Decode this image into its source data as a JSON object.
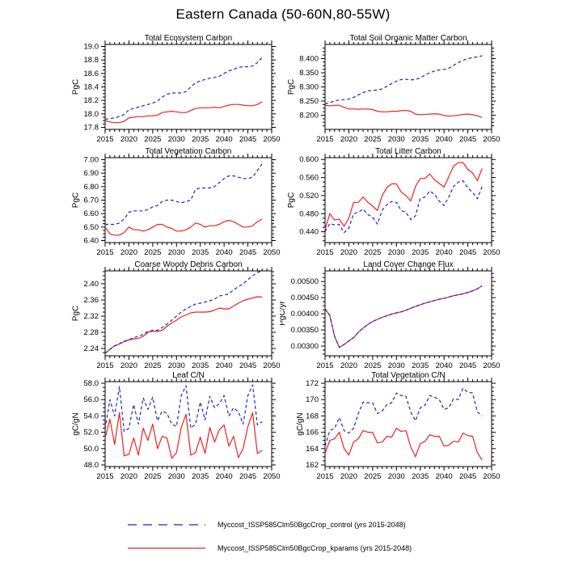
{
  "page_title": "Eastern Canada (50-60N,80-55W)",
  "legend": {
    "items": [
      {
        "label": "Myccost_ISSP585Clm50BgcCrop_control (yrs 2015-2048)",
        "color": "#2222cc",
        "style": "dashed"
      },
      {
        "label": "Myccost_ISSP585Clm50BgcCrop_kparams (yrs 2015-2048)",
        "color": "#ee2222",
        "style": "solid"
      }
    ]
  },
  "chart_data": [
    {
      "type": "line",
      "slug": "total-ecosystem-carbon",
      "title": "Total Ecosystem Carbon",
      "ylabel": "PgC",
      "xlim": [
        2015,
        2050
      ],
      "xticks": [
        2015,
        2020,
        2025,
        2030,
        2035,
        2040,
        2045,
        2050
      ],
      "xtick_labels": [
        "2015",
        "2020",
        "2025",
        "2030",
        "2035",
        "2040",
        "2045",
        "2050"
      ],
      "ylim": [
        17.77,
        19.03
      ],
      "yticks": [
        17.8,
        18.0,
        18.2,
        18.4,
        18.6,
        18.8,
        19.0
      ],
      "ytick_labels": [
        "17.8",
        "18.0",
        "18.2",
        "18.4",
        "18.6",
        "18.8",
        "19.0"
      ],
      "x_start": 2015,
      "series": [
        {
          "name": "control",
          "color": "#2222cc",
          "dashed": true,
          "values": [
            17.92,
            17.93,
            17.94,
            17.96,
            17.99,
            18.06,
            18.08,
            18.1,
            18.12,
            18.14,
            18.16,
            18.19,
            18.25,
            18.29,
            18.31,
            18.31,
            18.31,
            18.33,
            18.4,
            18.46,
            18.49,
            18.51,
            18.53,
            18.54,
            18.56,
            18.6,
            18.64,
            18.66,
            18.69,
            18.7,
            18.7,
            18.71,
            18.76,
            18.84
          ]
        },
        {
          "name": "kparams",
          "color": "#ee2222",
          "dashed": false,
          "values": [
            17.9,
            17.88,
            17.87,
            17.87,
            17.89,
            17.94,
            17.95,
            17.96,
            17.96,
            17.97,
            17.97,
            17.98,
            18.02,
            18.03,
            18.04,
            18.03,
            18.02,
            18.02,
            18.05,
            18.08,
            18.09,
            18.09,
            18.09,
            18.1,
            18.09,
            18.11,
            18.13,
            18.14,
            18.14,
            18.13,
            18.12,
            18.12,
            18.14,
            18.18
          ]
        }
      ]
    },
    {
      "type": "line",
      "slug": "total-soil-organic-matter-carbon",
      "title": "Total Soil Organic Matter Carbon",
      "ylabel": "PgC",
      "xlim": [
        2015,
        2050
      ],
      "xticks": [
        2015,
        2020,
        2025,
        2030,
        2035,
        2040,
        2045,
        2050
      ],
      "xtick_labels": [
        "2015",
        "2020",
        "2025",
        "2030",
        "2035",
        "2040",
        "2045",
        "2050"
      ],
      "ylim": [
        8.15,
        8.45
      ],
      "yticks": [
        8.2,
        8.25,
        8.3,
        8.35,
        8.4
      ],
      "ytick_labels": [
        "8.200",
        "8.250",
        "8.300",
        "8.350",
        "8.400"
      ],
      "x_start": 2015,
      "series": [
        {
          "name": "control",
          "color": "#2222cc",
          "dashed": true,
          "values": [
            8.24,
            8.245,
            8.25,
            8.254,
            8.255,
            8.257,
            8.263,
            8.272,
            8.28,
            8.286,
            8.288,
            8.289,
            8.293,
            8.302,
            8.312,
            8.32,
            8.326,
            8.327,
            8.325,
            8.326,
            8.332,
            8.342,
            8.35,
            8.356,
            8.36,
            8.362,
            8.366,
            8.376,
            8.386,
            8.394,
            8.4,
            8.404,
            8.406,
            8.41
          ]
        },
        {
          "name": "kparams",
          "color": "#ee2222",
          "dashed": false,
          "values": [
            8.235,
            8.233,
            8.235,
            8.235,
            8.228,
            8.222,
            8.222,
            8.221,
            8.222,
            8.222,
            8.22,
            8.214,
            8.212,
            8.212,
            8.214,
            8.214,
            8.216,
            8.217,
            8.214,
            8.204,
            8.202,
            8.203,
            8.204,
            8.205,
            8.204,
            8.199,
            8.197,
            8.198,
            8.2,
            8.203,
            8.204,
            8.202,
            8.198,
            8.192
          ]
        }
      ]
    },
    {
      "type": "line",
      "slug": "total-vegetation-carbon",
      "title": "Total Vegetation Carbon",
      "ylabel": "PgC",
      "xlim": [
        2015,
        2050
      ],
      "xticks": [
        2015,
        2020,
        2025,
        2030,
        2035,
        2040,
        2045,
        2050
      ],
      "xtick_labels": [
        "2015",
        "2020",
        "2025",
        "2030",
        "2035",
        "2040",
        "2045",
        "2050"
      ],
      "ylim": [
        6.385,
        7.015
      ],
      "yticks": [
        6.4,
        6.5,
        6.6,
        6.7,
        6.8,
        6.9,
        7.0
      ],
      "ytick_labels": [
        "6.40",
        "6.50",
        "6.60",
        "6.70",
        "6.80",
        "6.90",
        "7.00"
      ],
      "x_start": 2015,
      "series": [
        {
          "name": "control",
          "color": "#2222cc",
          "dashed": true,
          "values": [
            6.52,
            6.52,
            6.52,
            6.53,
            6.56,
            6.61,
            6.62,
            6.62,
            6.62,
            6.63,
            6.65,
            6.66,
            6.69,
            6.7,
            6.7,
            6.69,
            6.68,
            6.69,
            6.7,
            6.78,
            6.79,
            6.79,
            6.79,
            6.8,
            6.83,
            6.86,
            6.88,
            6.88,
            6.87,
            6.86,
            6.86,
            6.87,
            6.92,
            6.97
          ]
        },
        {
          "name": "kparams",
          "color": "#ee2222",
          "dashed": false,
          "values": [
            6.5,
            6.45,
            6.44,
            6.44,
            6.46,
            6.5,
            6.48,
            6.48,
            6.47,
            6.48,
            6.5,
            6.52,
            6.52,
            6.5,
            6.49,
            6.47,
            6.47,
            6.48,
            6.5,
            6.53,
            6.52,
            6.5,
            6.51,
            6.51,
            6.52,
            6.54,
            6.55,
            6.54,
            6.52,
            6.5,
            6.5,
            6.51,
            6.54,
            6.56
          ]
        }
      ]
    },
    {
      "type": "line",
      "slug": "total-litter-carbon",
      "title": "Total Litter Carbon",
      "ylabel": "PgC",
      "xlim": [
        2015,
        2050
      ],
      "xticks": [
        2015,
        2020,
        2025,
        2030,
        2035,
        2040,
        2045,
        2050
      ],
      "xtick_labels": [
        "2015",
        "2020",
        "2025",
        "2030",
        "2035",
        "2040",
        "2045",
        "2050"
      ],
      "ylim": [
        0.416,
        0.604
      ],
      "yticks": [
        0.44,
        0.48,
        0.52,
        0.56,
        0.6
      ],
      "ytick_labels": [
        "0.440",
        "0.480",
        "0.520",
        "0.560",
        "0.600"
      ],
      "x_start": 2015,
      "series": [
        {
          "name": "control",
          "color": "#2222cc",
          "dashed": true,
          "values": [
            0.44,
            0.458,
            0.455,
            0.456,
            0.438,
            0.448,
            0.48,
            0.483,
            0.49,
            0.478,
            0.472,
            0.457,
            0.488,
            0.5,
            0.507,
            0.505,
            0.487,
            0.483,
            0.467,
            0.475,
            0.513,
            0.517,
            0.53,
            0.523,
            0.508,
            0.498,
            0.517,
            0.54,
            0.55,
            0.553,
            0.537,
            0.527,
            0.513,
            0.54
          ]
        },
        {
          "name": "kparams",
          "color": "#ee2222",
          "dashed": false,
          "values": [
            0.445,
            0.48,
            0.466,
            0.468,
            0.452,
            0.47,
            0.505,
            0.505,
            0.517,
            0.505,
            0.497,
            0.487,
            0.52,
            0.538,
            0.546,
            0.546,
            0.528,
            0.52,
            0.508,
            0.54,
            0.558,
            0.558,
            0.568,
            0.555,
            0.547,
            0.539,
            0.562,
            0.585,
            0.593,
            0.593,
            0.578,
            0.57,
            0.553,
            0.58
          ]
        }
      ]
    },
    {
      "type": "line",
      "slug": "coarse-woody-debris-carbon",
      "title": "Coarse Woody Debris Carbon",
      "ylabel": "PgC",
      "xlim": [
        2015,
        2050
      ],
      "xticks": [
        2015,
        2020,
        2025,
        2030,
        2035,
        2040,
        2045,
        2050
      ],
      "xtick_labels": [
        "2015",
        "2020",
        "2025",
        "2030",
        "2035",
        "2040",
        "2045",
        "2050"
      ],
      "ylim": [
        2.222,
        2.432
      ],
      "yticks": [
        2.24,
        2.28,
        2.32,
        2.36,
        2.4
      ],
      "ytick_labels": [
        "2.24",
        "2.28",
        "2.32",
        "2.36",
        "2.40"
      ],
      "x_start": 2015,
      "series": [
        {
          "name": "control",
          "color": "#2222cc",
          "dashed": true,
          "values": [
            2.228,
            2.238,
            2.247,
            2.252,
            2.258,
            2.262,
            2.267,
            2.27,
            2.275,
            2.282,
            2.285,
            2.285,
            2.292,
            2.3,
            2.31,
            2.32,
            2.33,
            2.338,
            2.344,
            2.35,
            2.352,
            2.355,
            2.358,
            2.362,
            2.37,
            2.372,
            2.375,
            2.385,
            2.393,
            2.4,
            2.41,
            2.42,
            2.428,
            2.432
          ]
        },
        {
          "name": "kparams",
          "color": "#ee2222",
          "dashed": false,
          "values": [
            2.228,
            2.238,
            2.246,
            2.251,
            2.257,
            2.261,
            2.264,
            2.265,
            2.27,
            2.28,
            2.283,
            2.282,
            2.285,
            2.295,
            2.303,
            2.31,
            2.318,
            2.323,
            2.328,
            2.33,
            2.33,
            2.33,
            2.331,
            2.335,
            2.34,
            2.338,
            2.338,
            2.345,
            2.352,
            2.358,
            2.362,
            2.365,
            2.368,
            2.367
          ]
        }
      ]
    },
    {
      "type": "line",
      "slug": "land-cover-change-flux",
      "title": "Land Cover Change Flux",
      "ylabel": "PgC/yr",
      "xlim": [
        2015,
        2050
      ],
      "xticks": [
        2015,
        2020,
        2025,
        2030,
        2035,
        2040,
        2045,
        2050
      ],
      "xtick_labels": [
        "2015",
        "2020",
        "2025",
        "2030",
        "2035",
        "2040",
        "2045",
        "2050"
      ],
      "ylim": [
        0.0027,
        0.00533
      ],
      "yticks": [
        0.003,
        0.0035,
        0.004,
        0.0045,
        0.005
      ],
      "ytick_labels": [
        "0.00300",
        "0.00350",
        "0.00400",
        "0.00450",
        "0.00500"
      ],
      "x_start": 2015,
      "series": [
        {
          "name": "control",
          "color": "#2222cc",
          "dashed": true,
          "values": [
            0.00415,
            0.00395,
            0.0033,
            0.00296,
            0.00305,
            0.00316,
            0.00326,
            0.00343,
            0.00356,
            0.00367,
            0.00376,
            0.00383,
            0.00389,
            0.00394,
            0.00399,
            0.00403,
            0.00406,
            0.00411,
            0.00417,
            0.00423,
            0.00428,
            0.00433,
            0.00437,
            0.00441,
            0.00445,
            0.00448,
            0.00452,
            0.00456,
            0.00459,
            0.00462,
            0.00466,
            0.00471,
            0.00477,
            0.00487
          ]
        },
        {
          "name": "kparams",
          "color": "#ee2222",
          "dashed": false,
          "values": [
            0.00415,
            0.00395,
            0.0033,
            0.00296,
            0.00305,
            0.00316,
            0.00326,
            0.00343,
            0.00356,
            0.00367,
            0.00376,
            0.00383,
            0.00389,
            0.00394,
            0.00399,
            0.00403,
            0.00406,
            0.00411,
            0.00417,
            0.00423,
            0.00428,
            0.00433,
            0.00437,
            0.00441,
            0.00445,
            0.00448,
            0.00452,
            0.00456,
            0.00459,
            0.00462,
            0.00466,
            0.00471,
            0.00477,
            0.00487
          ]
        }
      ]
    },
    {
      "type": "line",
      "slug": "leaf-c-n",
      "title": "Leaf C/N",
      "ylabel": "gC/gN",
      "xlim": [
        2015,
        2050
      ],
      "xticks": [
        2015,
        2020,
        2025,
        2030,
        2035,
        2040,
        2045,
        2050
      ],
      "xtick_labels": [
        "2015",
        "2020",
        "2025",
        "2030",
        "2035",
        "2040",
        "2045",
        "2050"
      ],
      "ylim": [
        47.8,
        58.2
      ],
      "yticks": [
        48.0,
        50.0,
        52.0,
        54.0,
        56.0,
        58.0
      ],
      "ytick_labels": [
        "48.0",
        "50.0",
        "52.0",
        "54.0",
        "56.0",
        "58.0"
      ],
      "x_start": 2015,
      "series": [
        {
          "name": "control",
          "color": "#2222cc",
          "dashed": true,
          "values": [
            52.4,
            56.0,
            54.0,
            57.6,
            52.1,
            52.5,
            55.4,
            53.0,
            56.2,
            54.8,
            56.3,
            53.4,
            54.6,
            54.3,
            53.0,
            52.7,
            56.5,
            57.7,
            52.5,
            53.0,
            55.7,
            53.5,
            56.4,
            55.0,
            55.5,
            56.5,
            54.0,
            55.0,
            54.5,
            53.0,
            56.5,
            57.8,
            52.9,
            53.3
          ]
        },
        {
          "name": "kparams",
          "color": "#ee2222",
          "dashed": false,
          "values": [
            51.3,
            53.6,
            50.5,
            54.4,
            49.1,
            49.3,
            51.3,
            49.2,
            52.5,
            51.0,
            53.0,
            50.0,
            51.5,
            51.3,
            48.8,
            49.5,
            52.6,
            54.2,
            49.2,
            49.5,
            51.4,
            49.4,
            52.6,
            50.8,
            52.3,
            52.9,
            50.3,
            51.5,
            48.9,
            50.0,
            52.7,
            54.4,
            49.4,
            49.8
          ]
        }
      ]
    },
    {
      "type": "line",
      "slug": "total-vegetation-c-n",
      "title": "Total Vegetation C/N",
      "ylabel": "gC/gN",
      "xlim": [
        2015,
        2050
      ],
      "xticks": [
        2015,
        2020,
        2025,
        2030,
        2035,
        2040,
        2045,
        2050
      ],
      "xtick_labels": [
        "2015",
        "2020",
        "2025",
        "2030",
        "2035",
        "2040",
        "2045",
        "2050"
      ],
      "ylim": [
        161.8,
        172.2
      ],
      "yticks": [
        162,
        164,
        166,
        168,
        170,
        172
      ],
      "ytick_labels": [
        "162",
        "164",
        "166",
        "168",
        "170",
        "172"
      ],
      "x_start": 2015,
      "series": [
        {
          "name": "control",
          "color": "#2222cc",
          "dashed": true,
          "values": [
            164.3,
            166.2,
            166.5,
            167.8,
            166.2,
            165.9,
            166.5,
            168.3,
            169.7,
            169.6,
            169.6,
            168.3,
            168.6,
            169.4,
            169.6,
            170.8,
            170.5,
            170.4,
            168.5,
            167.4,
            169.0,
            169.3,
            170.5,
            170.3,
            170.0,
            168.8,
            169.0,
            170.1,
            170.0,
            171.4,
            170.9,
            170.8,
            168.5,
            168.0
          ]
        },
        {
          "name": "kparams",
          "color": "#ee2222",
          "dashed": false,
          "values": [
            163.4,
            165.0,
            165.2,
            166.0,
            164.0,
            163.2,
            164.8,
            165.2,
            166.2,
            166.0,
            166.0,
            164.7,
            164.8,
            165.5,
            165.4,
            166.5,
            166.1,
            166.2,
            164.2,
            163.0,
            164.6,
            164.9,
            165.7,
            165.5,
            165.5,
            164.3,
            164.4,
            164.9,
            164.8,
            165.9,
            165.6,
            165.5,
            163.5,
            162.6
          ]
        }
      ]
    }
  ]
}
